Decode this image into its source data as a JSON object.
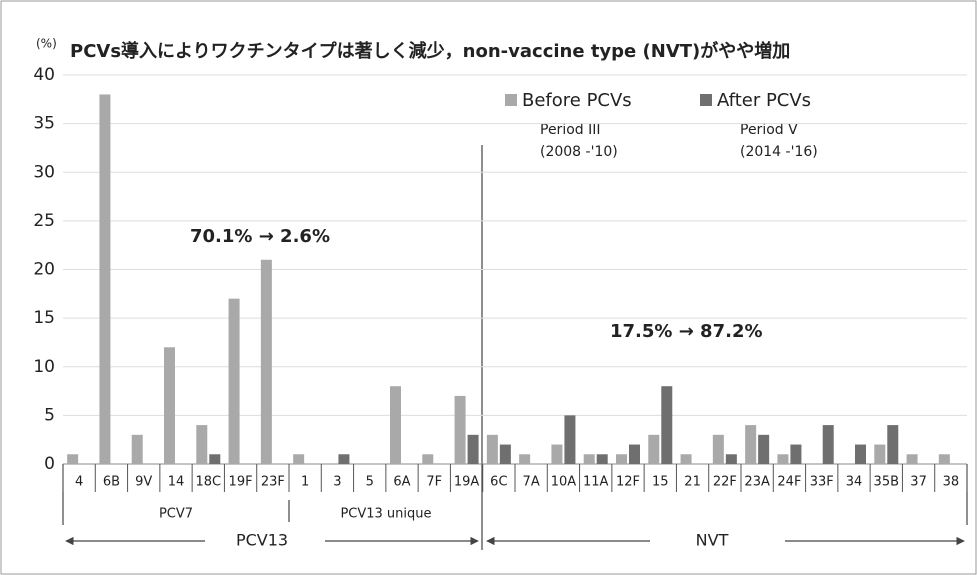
{
  "chart_data": {
    "type": "bar",
    "title": "PCVs導入によりワクチンタイプは著しく減少，non-vaccine type (NVT)がやや増加",
    "y_label": "(%)",
    "categories": [
      "4",
      "6B",
      "9V",
      "14",
      "18C",
      "19F",
      "23F",
      "1",
      "3",
      "5",
      "6A",
      "7F",
      "19A",
      "6C",
      "7A",
      "10A",
      "11A",
      "12F",
      "15",
      "21",
      "22F",
      "23A",
      "24F",
      "33F",
      "34",
      "35B",
      "37",
      "38"
    ],
    "series": [
      {
        "name": "Before PCVs",
        "color": "#a9a9a9",
        "values": [
          1,
          38,
          3,
          12,
          4,
          17,
          21,
          1,
          0,
          0,
          8,
          1,
          7,
          3,
          1,
          2,
          1,
          1,
          3,
          1,
          3,
          4,
          1,
          0,
          0,
          2,
          1,
          1
        ]
      },
      {
        "name": "After PCVs",
        "color": "#6f6f6f",
        "values": [
          0,
          0,
          0,
          0,
          1,
          0,
          0,
          0,
          1,
          0,
          0,
          0,
          3,
          2,
          0,
          5,
          1,
          2,
          8,
          0,
          1,
          3,
          2,
          4,
          2,
          4,
          0,
          0
        ]
      }
    ],
    "ylim": [
      0,
      40
    ],
    "yticks": [
      0,
      5,
      10,
      15,
      20,
      25,
      30,
      35,
      40
    ],
    "grid": true,
    "periods": [
      {
        "name": "Period III",
        "years": "(2008 -'10)"
      },
      {
        "name": "Period V",
        "years": "(2014 -'16)"
      }
    ],
    "annotations": [
      "70.1% → 2.6%",
      "17.5% → 87.2%"
    ],
    "groups": [
      "PCV7",
      "PCV13 unique"
    ],
    "supergroups": [
      "PCV13",
      "NVT"
    ]
  }
}
